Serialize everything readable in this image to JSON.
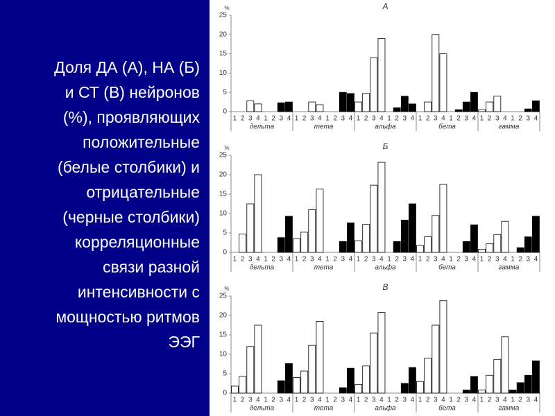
{
  "slide_text": [
    "Доля ДА (А), НА (Б)",
    "и СТ (В) нейронов",
    "(%), проявляющих",
    "положительные",
    "(белые столбики) и",
    "отрицательные",
    "(черные столбики)",
    "корреляционные",
    "связи разной",
    "интенсивности с",
    "мощностью ритмов",
    "ЭЭГ"
  ],
  "chart_data": [
    {
      "type": "bar",
      "title": "А",
      "y_label": "%",
      "categories": [
        "1",
        "2",
        "3",
        "4",
        "1",
        "2",
        "3",
        "4",
        "1",
        "2",
        "3",
        "4",
        "1",
        "2",
        "3",
        "4",
        "1",
        "2",
        "3",
        "4",
        "1",
        "2",
        "3",
        "4",
        "1",
        "2",
        "3",
        "4",
        "1",
        "2",
        "3",
        "4",
        "1",
        "2",
        "3",
        "4",
        "1",
        "2",
        "3",
        "4"
      ],
      "groups": [
        "дельта",
        "тета",
        "альфа",
        "бета",
        "гамма"
      ],
      "series": [
        {
          "color": "#ffffff",
          "values": [
            0,
            0,
            2.8,
            2.0,
            null,
            null,
            null,
            null,
            0,
            0,
            2.5,
            1.8,
            null,
            null,
            null,
            null,
            2.5,
            4.7,
            14,
            19,
            null,
            null,
            null,
            null,
            0,
            2.5,
            20,
            15,
            null,
            null,
            null,
            null,
            0.5,
            2.5,
            4,
            0,
            null,
            null,
            null,
            null
          ]
        },
        {
          "color": "#000000",
          "values": [
            null,
            null,
            null,
            null,
            0,
            0,
            2.3,
            2.5,
            null,
            null,
            null,
            null,
            0,
            0,
            5.0,
            4.7,
            null,
            null,
            null,
            null,
            0,
            1,
            4,
            2,
            null,
            null,
            null,
            null,
            0,
            0.5,
            2.5,
            5,
            null,
            null,
            null,
            null,
            0,
            0,
            0.7,
            2.8
          ]
        }
      ],
      "ylim": [
        0,
        25
      ],
      "yticks": [
        0,
        5,
        10,
        15,
        20,
        25
      ]
    },
    {
      "type": "bar",
      "title": "Б",
      "y_label": "%",
      "categories": [
        "1",
        "2",
        "3",
        "4",
        "1",
        "2",
        "3",
        "4",
        "1",
        "2",
        "3",
        "4",
        "1",
        "2",
        "3",
        "4",
        "1",
        "2",
        "3",
        "4",
        "1",
        "2",
        "3",
        "4",
        "1",
        "2",
        "3",
        "4",
        "1",
        "2",
        "3",
        "4",
        "1",
        "2",
        "3",
        "4",
        "1",
        "2",
        "3",
        "4"
      ],
      "groups": [
        "дельта",
        "тета",
        "альфа",
        "бета",
        "гамма"
      ],
      "series": [
        {
          "color": "#ffffff",
          "values": [
            0,
            4.7,
            12.5,
            20,
            null,
            null,
            null,
            null,
            3.5,
            5.2,
            11,
            16.3,
            null,
            null,
            null,
            null,
            3,
            7.2,
            17.3,
            23.2,
            null,
            null,
            null,
            null,
            1.8,
            4,
            9.5,
            17.5,
            null,
            null,
            null,
            null,
            0.8,
            2.2,
            4.6,
            8,
            null,
            null,
            null,
            null
          ]
        },
        {
          "color": "#000000",
          "values": [
            null,
            null,
            null,
            null,
            0,
            0,
            3.8,
            9.3,
            null,
            null,
            null,
            null,
            0,
            0,
            2.8,
            7.6,
            null,
            null,
            null,
            null,
            0,
            2.8,
            8.3,
            12.5,
            null,
            null,
            null,
            null,
            0,
            0,
            2.8,
            7.1,
            null,
            null,
            null,
            null,
            0,
            1.2,
            4,
            9.3
          ]
        }
      ],
      "ylim": [
        0,
        25
      ],
      "yticks": [
        0,
        5,
        10,
        15,
        20,
        25
      ]
    },
    {
      "type": "bar",
      "title": "В",
      "y_label": "%",
      "categories": [
        "1",
        "2",
        "3",
        "4",
        "1",
        "2",
        "3",
        "4",
        "1",
        "2",
        "3",
        "4",
        "1",
        "2",
        "3",
        "4",
        "1",
        "2",
        "3",
        "4",
        "1",
        "2",
        "3",
        "4",
        "1",
        "2",
        "3",
        "4",
        "1",
        "2",
        "3",
        "4",
        "1",
        "2",
        "3",
        "4",
        "1",
        "2",
        "3",
        "4"
      ],
      "groups": [
        "дельта",
        "тета",
        "альфа",
        "бета",
        "гамма"
      ],
      "series": [
        {
          "color": "#ffffff",
          "values": [
            1.8,
            4.3,
            12,
            17.5,
            null,
            null,
            null,
            null,
            4,
            5.7,
            12.3,
            18.5,
            null,
            null,
            null,
            null,
            2.2,
            7,
            15.5,
            20.8,
            null,
            null,
            null,
            null,
            3,
            9,
            17.5,
            23.8,
            null,
            null,
            null,
            null,
            0.8,
            4.6,
            8.7,
            14.5,
            null,
            null,
            null,
            null
          ]
        },
        {
          "color": "#000000",
          "values": [
            null,
            null,
            null,
            null,
            0,
            0,
            3.2,
            7.6,
            null,
            null,
            null,
            null,
            0,
            0,
            1.4,
            6.4,
            null,
            null,
            null,
            null,
            0,
            0,
            2.5,
            6.6,
            null,
            null,
            null,
            null,
            0,
            0,
            0.8,
            4.3,
            null,
            null,
            null,
            null,
            0.8,
            2.7,
            4.6,
            8.3
          ]
        }
      ],
      "ylim": [
        0,
        25
      ],
      "yticks": [
        0,
        5,
        10,
        15,
        20,
        25
      ]
    }
  ]
}
